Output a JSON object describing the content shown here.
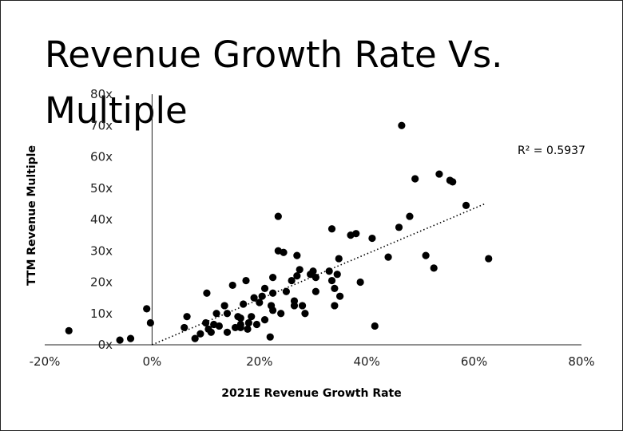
{
  "chart_data": {
    "type": "scatter",
    "title": "Revenue Growth Rate Vs. Multiple",
    "xlabel": "2021E Revenue Growth Rate",
    "ylabel": "TTM Revenue Multiple",
    "xlim": [
      -20,
      80
    ],
    "ylim": [
      0,
      80
    ],
    "x_ticks": [
      "-20%",
      "0%",
      "20%",
      "40%",
      "60%",
      "80%"
    ],
    "y_ticks": [
      "0x",
      "10x",
      "20x",
      "30x",
      "40x",
      "50x",
      "60x",
      "70x",
      "80x"
    ],
    "grid": false,
    "trendline": {
      "type": "linear",
      "from": [
        0,
        0
      ],
      "to": [
        62,
        45
      ],
      "r_squared_label": "R² = 0.5937"
    },
    "points": [
      [
        -15.5,
        4.5
      ],
      [
        -6,
        1.5
      ],
      [
        -4,
        2
      ],
      [
        -1,
        11.5
      ],
      [
        -0.3,
        7
      ],
      [
        6,
        5.5
      ],
      [
        6.5,
        9
      ],
      [
        8,
        2
      ],
      [
        9,
        3.5
      ],
      [
        10,
        7
      ],
      [
        10.2,
        16.5
      ],
      [
        10.5,
        5
      ],
      [
        11,
        4
      ],
      [
        11.5,
        6.5
      ],
      [
        12,
        10
      ],
      [
        12.5,
        6
      ],
      [
        13.5,
        12.5
      ],
      [
        14,
        10
      ],
      [
        14,
        4
      ],
      [
        15,
        19
      ],
      [
        15.5,
        5.5
      ],
      [
        16,
        9
      ],
      [
        16.5,
        8.5
      ],
      [
        16.5,
        6.5
      ],
      [
        16.5,
        5.5
      ],
      [
        17,
        13
      ],
      [
        17.5,
        20.5
      ],
      [
        17.8,
        5
      ],
      [
        18,
        7
      ],
      [
        18.5,
        9
      ],
      [
        19,
        15
      ],
      [
        19.5,
        6.5
      ],
      [
        20,
        13.5
      ],
      [
        20.5,
        15.5
      ],
      [
        21,
        8
      ],
      [
        21,
        18
      ],
      [
        22,
        2.5
      ],
      [
        22.2,
        12.5
      ],
      [
        22.5,
        11
      ],
      [
        22.5,
        16.5
      ],
      [
        22.5,
        21.5
      ],
      [
        23.5,
        30
      ],
      [
        23.5,
        41
      ],
      [
        24,
        10
      ],
      [
        24.5,
        29.5
      ],
      [
        25,
        17
      ],
      [
        26,
        20.5
      ],
      [
        26.5,
        12.5
      ],
      [
        26.5,
        14
      ],
      [
        27,
        28.5
      ],
      [
        27,
        22
      ],
      [
        27.5,
        24
      ],
      [
        28,
        12.5
      ],
      [
        28.5,
        10
      ],
      [
        29.5,
        22.5
      ],
      [
        30,
        23.5
      ],
      [
        30.5,
        21.5
      ],
      [
        30.5,
        17
      ],
      [
        33,
        23.5
      ],
      [
        33.5,
        37
      ],
      [
        33.5,
        20.5
      ],
      [
        34,
        12.5
      ],
      [
        34,
        18
      ],
      [
        34.5,
        22.5
      ],
      [
        34.8,
        27.5
      ],
      [
        35,
        15.5
      ],
      [
        37,
        35
      ],
      [
        38,
        35.5
      ],
      [
        38.8,
        20
      ],
      [
        41,
        34
      ],
      [
        41.5,
        6
      ],
      [
        44,
        28
      ],
      [
        46,
        37.5
      ],
      [
        46.5,
        70
      ],
      [
        48,
        41
      ],
      [
        49,
        53
      ],
      [
        51,
        28.5
      ],
      [
        52.5,
        24.5
      ],
      [
        53.5,
        54.5
      ],
      [
        55.5,
        52.5
      ],
      [
        56,
        52
      ],
      [
        58.5,
        44.5
      ],
      [
        62.7,
        27.5
      ]
    ]
  }
}
